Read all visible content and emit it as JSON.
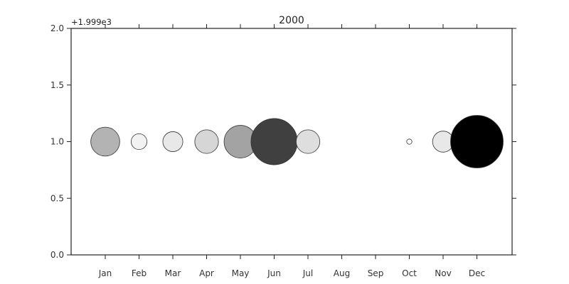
{
  "chart_data": {
    "type": "scatter",
    "title": "2000",
    "y_offset_label": "+1.999e3",
    "xlabel": "",
    "ylabel": "",
    "ylim": [
      0.0,
      2.0
    ],
    "yticks": [
      0.0,
      0.5,
      1.0,
      1.5,
      2.0
    ],
    "ytick_labels": [
      "0.0",
      "0.5",
      "1.0",
      "1.5",
      "2.0"
    ],
    "categories": [
      "Jan",
      "Feb",
      "Mar",
      "Apr",
      "May",
      "Jun",
      "Jul",
      "Aug",
      "Sep",
      "Oct",
      "Nov",
      "Dec"
    ],
    "grid": false,
    "points": [
      {
        "month": "Jan",
        "y": 1.0,
        "size": 0.55,
        "shade": 0.7
      },
      {
        "month": "Feb",
        "y": 1.0,
        "size": 0.3,
        "shade": 0.95
      },
      {
        "month": "Mar",
        "y": 1.0,
        "size": 0.38,
        "shade": 0.91
      },
      {
        "month": "Apr",
        "y": 1.0,
        "size": 0.45,
        "shade": 0.84
      },
      {
        "month": "May",
        "y": 1.0,
        "size": 0.62,
        "shade": 0.64
      },
      {
        "month": "Jun",
        "y": 1.0,
        "size": 0.88,
        "shade": 0.25
      },
      {
        "month": "Jul",
        "y": 1.0,
        "size": 0.45,
        "shade": 0.87
      },
      {
        "month": "Oct",
        "y": 1.0,
        "size": 0.1,
        "shade": 1.0
      },
      {
        "month": "Nov",
        "y": 1.0,
        "size": 0.4,
        "shade": 0.91
      },
      {
        "month": "Dec",
        "y": 1.0,
        "size": 1.0,
        "shade": 0.0
      }
    ]
  }
}
